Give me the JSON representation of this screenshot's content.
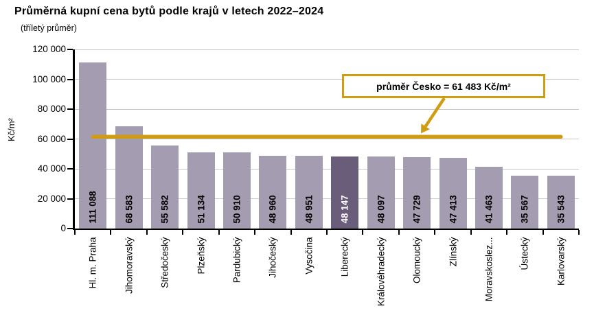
{
  "chart_data": {
    "type": "bar",
    "title": "Průměrná kupní cena bytů podle krajů v letech 2022–2024",
    "subtitle": "(tříletý průměr)",
    "ylabel": "Kč/m²",
    "ylim": [
      0,
      120000
    ],
    "ytick_step": 20000,
    "ytick_labels": [
      "0",
      "20 000",
      "40 000",
      "60 000",
      "80 000",
      "100 000",
      "120 000"
    ],
    "grid": true,
    "categories": [
      "Hl. m. Praha",
      "Jihomoravský",
      "Středočeský",
      "Plzeňský",
      "Pardubický",
      "Jihočeský",
      "Vysočina",
      "Liberecký",
      "Královéhradecký",
      "Olomoucký",
      "Zlínský",
      "Moravskoslez...",
      "Ústecký",
      "Karlovarský"
    ],
    "values": [
      111088,
      68583,
      55582,
      51134,
      50910,
      48960,
      48951,
      48147,
      48097,
      47729,
      47413,
      41463,
      35567,
      35543
    ],
    "value_labels": [
      "111 088",
      "68 583",
      "55 582",
      "51 134",
      "50 910",
      "48 960",
      "48 951",
      "48 147",
      "48 097",
      "47 729",
      "47 413",
      "41 463",
      "35 567",
      "35 543"
    ],
    "highlight_index": 7,
    "highlight_category": "Liberecký",
    "average": {
      "value": 61483,
      "label": "průměr Česko = 61 483 Kč/m²"
    },
    "colors": {
      "bar": "#a49cb0",
      "bar_highlight": "#695d7a",
      "accent": "#d09d12",
      "gridline": "#c8c8c8",
      "axis": "#000000",
      "value_label": "#000000",
      "value_label_highlight": "#ffffff"
    }
  }
}
